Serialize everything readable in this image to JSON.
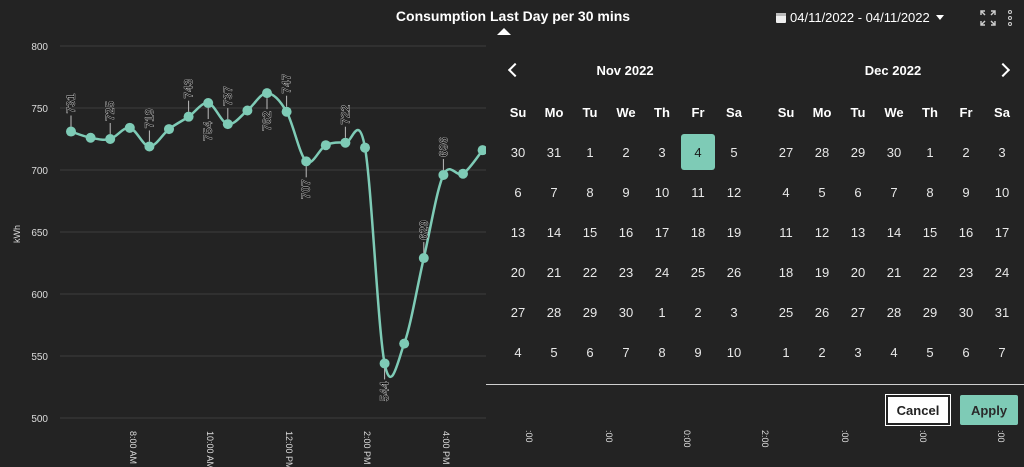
{
  "header": {
    "title": "Consumption Last Day per 30 mins",
    "date_range": "04/11/2022 - 04/11/2022"
  },
  "icons": {
    "calendar": "calendar-icon",
    "dropdown": "caret-down-icon",
    "expand": "expand-icon",
    "menu": "kebab-menu-icon"
  },
  "colors": {
    "accent": "#7ecbb6",
    "background": "#232323",
    "gridline": "#3c3c3c"
  },
  "chart_data": {
    "type": "line",
    "ylabel": "kWh",
    "ylim": [
      500,
      800
    ],
    "y_ticks": [
      500,
      550,
      600,
      650,
      700,
      750,
      800
    ],
    "x_tick_labels": [
      "8:00 AM",
      "10:00 AM",
      "12:00 PM",
      "2:00 PM",
      "4:00 PM"
    ],
    "grid": true,
    "values": [
      731,
      726,
      725,
      734,
      719,
      733,
      743,
      754,
      737,
      748,
      762,
      747,
      707,
      720,
      722,
      718,
      544,
      560,
      629,
      696,
      697,
      716
    ],
    "labels": [
      "731",
      "",
      "725",
      "",
      "719",
      "",
      "743",
      "754",
      "737",
      "",
      "762",
      "747",
      "707",
      "",
      "722",
      "",
      "544",
      "",
      "629",
      "696",
      "",
      ""
    ],
    "label_below": [
      false,
      false,
      false,
      false,
      false,
      false,
      false,
      true,
      false,
      false,
      true,
      false,
      true,
      false,
      false,
      false,
      true,
      false,
      false,
      false,
      false,
      false
    ]
  },
  "calendar": {
    "weekdays": [
      "Su",
      "Mo",
      "Tu",
      "We",
      "Th",
      "Fr",
      "Sa"
    ],
    "months": [
      {
        "title": "Nov 2022",
        "days": [
          "30",
          "31",
          "1",
          "2",
          "3",
          "4",
          "5",
          "6",
          "7",
          "8",
          "9",
          "10",
          "11",
          "12",
          "13",
          "14",
          "15",
          "16",
          "17",
          "18",
          "19",
          "20",
          "21",
          "22",
          "23",
          "24",
          "25",
          "26",
          "27",
          "28",
          "29",
          "30",
          "1",
          "2",
          "3",
          "4",
          "5",
          "6",
          "7",
          "8",
          "9",
          "10"
        ],
        "selected_index": 5
      },
      {
        "title": "Dec 2022",
        "days": [
          "27",
          "28",
          "29",
          "30",
          "1",
          "2",
          "3",
          "4",
          "5",
          "6",
          "7",
          "8",
          "9",
          "10",
          "11",
          "12",
          "13",
          "14",
          "15",
          "16",
          "17",
          "18",
          "19",
          "20",
          "21",
          "22",
          "23",
          "24",
          "25",
          "26",
          "27",
          "28",
          "29",
          "30",
          "31",
          "1",
          "2",
          "3",
          "4",
          "5",
          "6",
          "7"
        ],
        "selected_index": -1
      }
    ]
  },
  "buttons": {
    "cancel": "Cancel",
    "apply": "Apply"
  },
  "x_fragments": [
    ":00",
    ":00",
    "0:00",
    "2:00",
    ":00",
    ":00",
    ":00"
  ]
}
